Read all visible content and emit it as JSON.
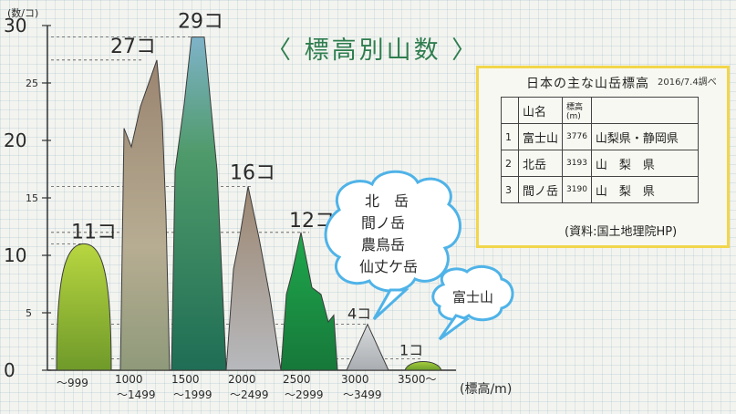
{
  "chart_data": {
    "type": "area",
    "title": "〈 標高別山数 〉",
    "ylabel": "(数/コ)",
    "xlabel": "(標高/m)",
    "ylim": [
      0,
      30
    ],
    "yticks": [
      "0",
      "5",
      "10",
      "15",
      "20",
      "25",
      "30"
    ],
    "categories": [
      [
        "",
        "〜999"
      ],
      [
        "1000",
        "〜1499"
      ],
      [
        "1500",
        "〜1999"
      ],
      [
        "2000",
        "〜2499"
      ],
      [
        "2500",
        "〜2999"
      ],
      [
        "3000",
        "〜3499"
      ],
      [
        "3500〜",
        ""
      ]
    ],
    "values": [
      11,
      27,
      29,
      16,
      12,
      4,
      1
    ],
    "value_labels": [
      "11コ",
      "27コ",
      "29コ",
      "16コ",
      "12コ",
      "4コ",
      "1コ"
    ],
    "colors": [
      "#9cc230",
      "#a8987e",
      "#3f8a68",
      "#a58f7d",
      "#1f9a48",
      "#b9bec2",
      "#86b334"
    ]
  },
  "callouts": {
    "above_3000": [
      "北　岳",
      "間ノ岳",
      "農鳥岳",
      "仙丈ケ岳"
    ],
    "above_3500": [
      "富士山"
    ]
  },
  "legend": {
    "title": "日本の主な山岳標高",
    "date": "2016/7.4調べ",
    "headers": [
      "",
      "山名",
      "標高(m)",
      ""
    ],
    "rows": [
      [
        "1",
        "富士山",
        "3776",
        "山梨県・静岡県"
      ],
      [
        "2",
        "北岳",
        "3193",
        "山　梨　県"
      ],
      [
        "3",
        "間ノ岳",
        "3190",
        "山　梨　県"
      ]
    ],
    "source": "(資料:国土地理院HP)"
  }
}
